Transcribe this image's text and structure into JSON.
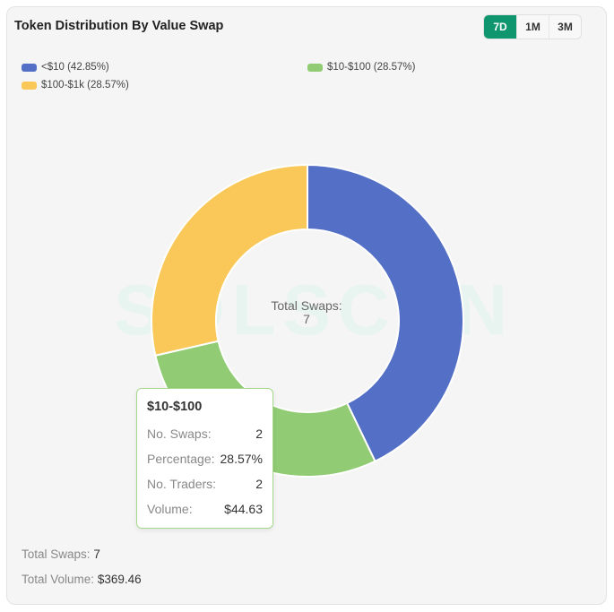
{
  "header": {
    "title": "Token Distribution By Value Swap",
    "ranges": [
      "7D",
      "1M",
      "3M"
    ],
    "active_range": "7D"
  },
  "legend": [
    {
      "label": "<$10 (42.85%)",
      "color": "#5470c6"
    },
    {
      "label": "$10-$100 (28.57%)",
      "color": "#91cc75"
    },
    {
      "label": "$100-$1k (28.57%)",
      "color": "#fac858"
    }
  ],
  "watermark": "SOLSCAN",
  "center": {
    "label": "Total Swaps:",
    "value": "7"
  },
  "tooltip": {
    "title": "$10-$100",
    "rows": [
      {
        "key": "No. Swaps:",
        "value": "2"
      },
      {
        "key": "Percentage:",
        "value": "28.57%"
      },
      {
        "key": "No. Traders:",
        "value": "2"
      },
      {
        "key": "Volume:",
        "value": "$44.63"
      }
    ]
  },
  "footer": {
    "swaps_label": "Total Swaps:",
    "swaps_value": "7",
    "volume_label": "Total Volume:",
    "volume_value": "$369.46"
  },
  "chart_data": {
    "type": "pie",
    "donut": true,
    "title": "Token Distribution By Value Swap",
    "categories": [
      "<$10",
      "$10-$100",
      "$100-$1k"
    ],
    "values": [
      3,
      2,
      2
    ],
    "percentages": [
      42.85,
      28.57,
      28.57
    ],
    "colors": [
      "#5470c6",
      "#91cc75",
      "#fac858"
    ],
    "highlighted": "$10-$100",
    "legend_position": "top-left"
  }
}
